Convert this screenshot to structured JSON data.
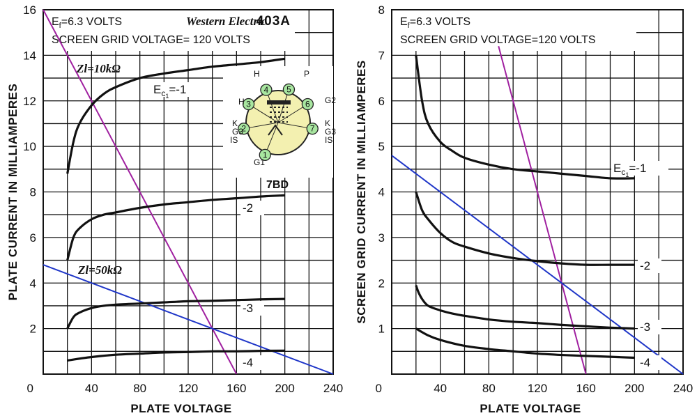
{
  "colors": {
    "curve": "#111111",
    "grid": "#111111",
    "load_10k": "#a020a0",
    "load_50k": "#1f36c8",
    "socket_fill": "#f3f0b0",
    "pin_fill": "#a8e6a0"
  },
  "chart_data": [
    {
      "type": "line",
      "header_lines": [
        "E_f=6.3 VOLTS",
        "SCREEN GRID VOLTAGE= 120 VOLTS"
      ],
      "brand": "Western Electric",
      "model": "403A",
      "basing": "7BD",
      "xlabel": "PLATE VOLTAGE",
      "ylabel": "PLATE CURRENT IN MILLIAMPERES",
      "xlim": [
        0,
        240
      ],
      "ylim": [
        0,
        16
      ],
      "x_ticks": [
        0,
        40,
        80,
        120,
        160,
        200,
        240
      ],
      "y_ticks": [
        0,
        2,
        4,
        6,
        8,
        10,
        12,
        14,
        16
      ],
      "grid": true,
      "series": [
        {
          "name": "-1",
          "x": [
            20,
            25,
            30,
            40,
            50,
            60,
            80,
            100,
            120,
            140,
            160,
            180,
            200
          ],
          "y": [
            8.8,
            10.2,
            11.0,
            11.8,
            12.3,
            12.6,
            13.0,
            13.2,
            13.35,
            13.5,
            13.6,
            13.7,
            13.85
          ]
        },
        {
          "name": "-2",
          "x": [
            20,
            25,
            30,
            40,
            50,
            60,
            80,
            100,
            120,
            140,
            160,
            180,
            200
          ],
          "y": [
            5.0,
            6.0,
            6.4,
            6.8,
            7.0,
            7.1,
            7.3,
            7.45,
            7.55,
            7.65,
            7.72,
            7.8,
            7.85
          ]
        },
        {
          "name": "-3",
          "x": [
            20,
            25,
            30,
            40,
            50,
            60,
            80,
            100,
            120,
            140,
            160,
            180,
            200
          ],
          "y": [
            2.0,
            2.5,
            2.7,
            2.9,
            3.0,
            3.05,
            3.1,
            3.15,
            3.2,
            3.22,
            3.25,
            3.28,
            3.3
          ]
        },
        {
          "name": "-4",
          "x": [
            20,
            40,
            60,
            80,
            100,
            120,
            140,
            160,
            180,
            200
          ],
          "y": [
            0.6,
            0.75,
            0.85,
            0.9,
            0.95,
            0.97,
            1.0,
            1.0,
            1.02,
            1.03
          ]
        }
      ],
      "load_lines": [
        {
          "name": "Zl=10kΩ",
          "x": [
            0,
            160
          ],
          "y": [
            16,
            0
          ],
          "color_key": "load_10k"
        },
        {
          "name": "Zl=50kΩ",
          "x": [
            0,
            240
          ],
          "y": [
            4.8,
            0
          ],
          "color_key": "load_50k"
        }
      ],
      "header_label_prefix": "E",
      "header_label_sub": "f",
      "header_label_rest": "=6.3 VOLTS",
      "curve_label_prefix": "E",
      "curve_label_sub": "c",
      "curve_label_subsub": "1",
      "pins": [
        "1",
        "2",
        "3",
        "4",
        "5",
        "6",
        "7"
      ],
      "pin_labels": [
        "G1",
        "K",
        "G3",
        "IS",
        "H",
        "H",
        "P",
        "G2",
        "K",
        "G3",
        "IS"
      ]
    },
    {
      "type": "line",
      "header_lines": [
        "E_f=6.3 VOLTS",
        "SCREEN GRID VOLTAGE=120 VOLTS"
      ],
      "xlabel": "PLATE VOLTAGE",
      "ylabel": "SCREEN GRID CURRENT IN MILLIAMPERES",
      "xlim": [
        0,
        240
      ],
      "ylim": [
        0,
        8
      ],
      "x_ticks": [
        0,
        40,
        80,
        120,
        160,
        200,
        240
      ],
      "y_ticks": [
        0,
        1,
        2,
        3,
        4,
        5,
        6,
        7,
        8
      ],
      "grid": true,
      "series": [
        {
          "name": "-1",
          "x": [
            20,
            25,
            30,
            40,
            50,
            60,
            80,
            100,
            120,
            140,
            160,
            180,
            200
          ],
          "y": [
            7.0,
            6.0,
            5.5,
            5.1,
            4.9,
            4.75,
            4.6,
            4.5,
            4.45,
            4.4,
            4.35,
            4.3,
            4.3
          ]
        },
        {
          "name": "-2",
          "x": [
            20,
            25,
            30,
            40,
            50,
            60,
            80,
            100,
            120,
            140,
            160,
            180,
            200
          ],
          "y": [
            4.0,
            3.6,
            3.4,
            3.1,
            2.9,
            2.8,
            2.65,
            2.55,
            2.48,
            2.43,
            2.4,
            2.4,
            2.4
          ]
        },
        {
          "name": "-3",
          "x": [
            20,
            22,
            25,
            30,
            40,
            50,
            60,
            80,
            100,
            120,
            140,
            160,
            180,
            200
          ],
          "y": [
            1.95,
            1.8,
            1.65,
            1.5,
            1.4,
            1.33,
            1.28,
            1.2,
            1.15,
            1.12,
            1.08,
            1.05,
            1.02,
            1.0
          ]
        },
        {
          "name": "-4",
          "x": [
            20,
            30,
            40,
            60,
            80,
            100,
            120,
            140,
            160,
            180,
            200
          ],
          "y": [
            1.0,
            0.85,
            0.75,
            0.62,
            0.55,
            0.5,
            0.45,
            0.42,
            0.4,
            0.38,
            0.36
          ]
        }
      ],
      "load_lines": [
        {
          "name": "",
          "x": [
            88,
            160
          ],
          "y": [
            7.2,
            0
          ],
          "color_key": "load_10k"
        },
        {
          "name": "",
          "x": [
            0,
            240
          ],
          "y": [
            4.8,
            0
          ],
          "color_key": "load_50k"
        }
      ],
      "header_label_prefix": "E",
      "header_label_sub": "f",
      "header_label_rest": "=6.3 VOLTS",
      "curve_label_prefix": "E",
      "curve_label_sub": "c",
      "curve_label_subsub": "1"
    }
  ]
}
